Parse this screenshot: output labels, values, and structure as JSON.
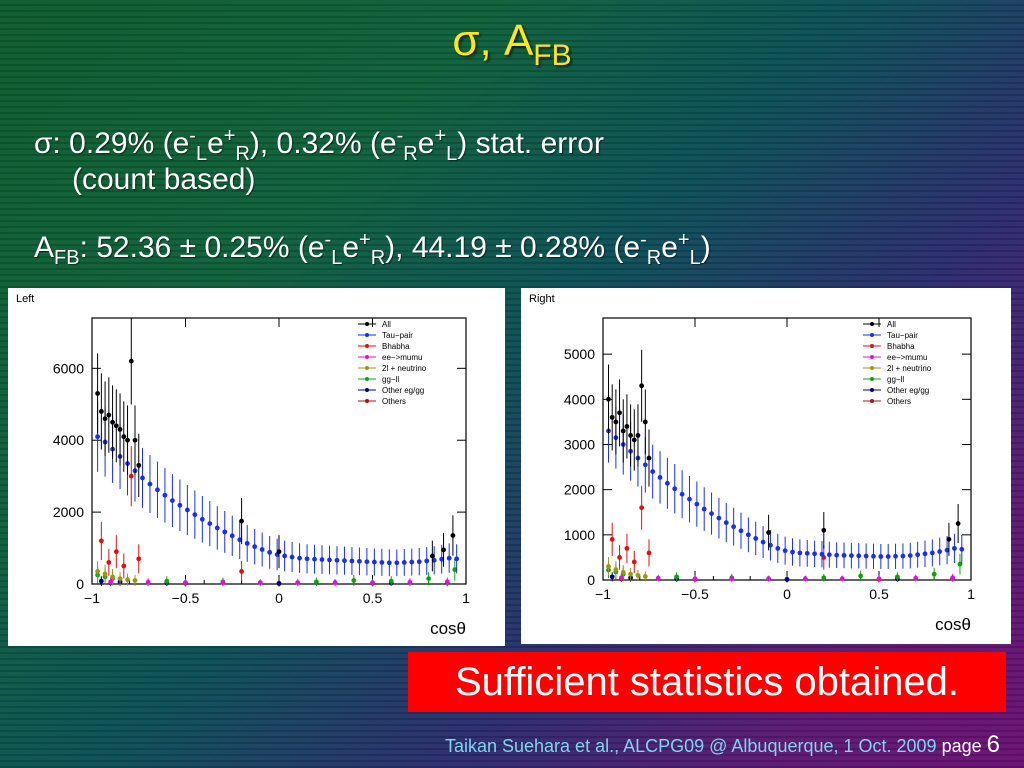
{
  "slide": {
    "title_main": "σ, A",
    "title_sub": "FB",
    "bullet1": {
      "a": "σ: 0.29% (e",
      "a_sup": "-",
      "a_sub": "L",
      "b": "e",
      "b_sup": "+",
      "b_sub": "R",
      "c": "), 0.32% (e",
      "c_sup": "-",
      "c_sub": "R",
      "d": "e",
      "d_sup": "+",
      "d_sub": "L",
      "e": ") stat. error"
    },
    "bullet1_cont": "(count based)",
    "bullet2": {
      "a": "A",
      "a_sub": "FB",
      "b": ": 52.36 ± 0.25% (e",
      "b_sup": "-",
      "b_sub": "L",
      "c": "e",
      "c_sup": "+",
      "c_sub": "R",
      "d": "), 44.19 ± 0.28% (e",
      "d_sup": "-",
      "d_sub": "R",
      "e": "e",
      "e_sup": "+",
      "e_sub": "L",
      "f": ")"
    },
    "banner": "Sufficient statistics obtained.",
    "footer_credit": "Taikan Suehara et al., ALCPG09 @ Albuquerque, 1 Oct. 2009",
    "footer_page_label": "page",
    "footer_page_num": "6"
  },
  "chart_data": [
    {
      "type": "scatter",
      "panel_label": "Left",
      "xlabel": "cosθ",
      "xlim": [
        -1,
        1
      ],
      "ylim": [
        0,
        7400
      ],
      "xticks": [
        -1,
        -0.5,
        0,
        0.5,
        1
      ],
      "xtick_labels": [
        "−1",
        "−0.5",
        "0",
        "0.5",
        "1"
      ],
      "yticks": [
        0,
        2000,
        4000,
        6000
      ],
      "ytick_labels": [
        "0",
        "2000",
        "4000",
        "6000"
      ],
      "legend_position": "top-right",
      "series": [
        {
          "name": "All",
          "color": "#000000",
          "x": [
            -0.97,
            -0.95,
            -0.93,
            -0.91,
            -0.89,
            -0.87,
            -0.85,
            -0.83,
            -0.81,
            -0.79,
            -0.77,
            -0.75,
            -0.2,
            0.0,
            0.82,
            0.88,
            0.93
          ],
          "y": [
            5300,
            4800,
            4600,
            4700,
            4500,
            4400,
            4300,
            4100,
            4000,
            6200,
            4000,
            3300,
            1750,
            900,
            780,
            950,
            1350
          ]
        },
        {
          "name": "Tau−pair",
          "color": "#1a2ef0",
          "x": [
            -0.97,
            -0.93,
            -0.89,
            -0.85,
            -0.81,
            -0.77,
            -0.73,
            -0.69,
            -0.65,
            -0.61,
            -0.57,
            -0.53,
            -0.49,
            -0.45,
            -0.41,
            -0.37,
            -0.33,
            -0.29,
            -0.25,
            -0.21,
            -0.17,
            -0.13,
            -0.09,
            -0.05,
            -0.01,
            0.03,
            0.07,
            0.11,
            0.15,
            0.19,
            0.23,
            0.27,
            0.31,
            0.35,
            0.39,
            0.43,
            0.47,
            0.51,
            0.55,
            0.59,
            0.63,
            0.67,
            0.71,
            0.75,
            0.79,
            0.83,
            0.87,
            0.91,
            0.95
          ],
          "y": [
            4100,
            3950,
            3750,
            3550,
            3350,
            3150,
            2950,
            2780,
            2620,
            2470,
            2320,
            2190,
            2060,
            1930,
            1800,
            1680,
            1560,
            1450,
            1340,
            1230,
            1130,
            1040,
            960,
            880,
            820,
            780,
            750,
            720,
            700,
            690,
            680,
            670,
            660,
            650,
            640,
            630,
            620,
            610,
            600,
            590,
            590,
            600,
            610,
            620,
            640,
            660,
            690,
            720,
            700
          ]
        },
        {
          "name": "Bhabha",
          "color": "#e01010",
          "x": [
            -0.95,
            -0.91,
            -0.87,
            -0.83,
            -0.79,
            -0.75,
            -0.2
          ],
          "y": [
            1200,
            600,
            900,
            500,
            3000,
            700,
            350
          ]
        },
        {
          "name": "ee−>mumu",
          "color": "#e010e0",
          "x": [
            -0.9,
            -0.7,
            -0.5,
            -0.3,
            -0.1,
            0.1,
            0.3,
            0.5,
            0.7,
            0.9
          ],
          "y": [
            60,
            50,
            40,
            40,
            40,
            40,
            40,
            40,
            50,
            60
          ]
        },
        {
          "name": "2l + neutrino",
          "color": "#9a9a10",
          "x": [
            -0.97,
            -0.93,
            -0.89,
            -0.85,
            -0.81,
            -0.77
          ],
          "y": [
            350,
            280,
            200,
            150,
            120,
            100
          ]
        },
        {
          "name": "gg−ll",
          "color": "#10a010",
          "x": [
            -0.97,
            -0.93,
            -0.89,
            -0.6,
            -0.3,
            0.2,
            0.4,
            0.6,
            0.8,
            0.94
          ],
          "y": [
            250,
            200,
            150,
            80,
            60,
            60,
            100,
            80,
            150,
            400
          ]
        },
        {
          "name": "Other eg/gg",
          "color": "#000080",
          "x": [
            -0.95,
            -0.85,
            -0.6,
            0.0,
            0.6
          ],
          "y": [
            80,
            60,
            30,
            20,
            30
          ]
        },
        {
          "name": "Others",
          "color": "#b01010",
          "x": [
            -0.9,
            -0.5,
            0.0,
            0.5,
            0.9
          ],
          "y": [
            30,
            20,
            10,
            20,
            40
          ]
        }
      ]
    },
    {
      "type": "scatter",
      "panel_label": "Right",
      "xlabel": "cosθ",
      "xlim": [
        -1,
        1
      ],
      "ylim": [
        0,
        5800
      ],
      "xticks": [
        -1,
        -0.5,
        0,
        0.5,
        1
      ],
      "xtick_labels": [
        "−1",
        "−0.5",
        "0",
        "0.5",
        "1"
      ],
      "yticks": [
        0,
        1000,
        2000,
        3000,
        4000,
        5000
      ],
      "ytick_labels": [
        "0",
        "1000",
        "2000",
        "3000",
        "4000",
        "5000"
      ],
      "legend_position": "top-right",
      "series": [
        {
          "name": "All",
          "color": "#000000",
          "x": [
            -0.97,
            -0.95,
            -0.93,
            -0.91,
            -0.89,
            -0.87,
            -0.85,
            -0.83,
            -0.81,
            -0.79,
            -0.77,
            -0.75,
            -0.1,
            0.2,
            0.88,
            0.93
          ],
          "y": [
            4000,
            3600,
            3500,
            3700,
            3300,
            3400,
            3200,
            3100,
            3200,
            4300,
            3500,
            2700,
            1050,
            1100,
            900,
            1250
          ]
        },
        {
          "name": "Tau−pair",
          "color": "#1a2ef0",
          "x": [
            -0.97,
            -0.93,
            -0.89,
            -0.85,
            -0.81,
            -0.77,
            -0.73,
            -0.69,
            -0.65,
            -0.61,
            -0.57,
            -0.53,
            -0.49,
            -0.45,
            -0.41,
            -0.37,
            -0.33,
            -0.29,
            -0.25,
            -0.21,
            -0.17,
            -0.13,
            -0.09,
            -0.05,
            -0.01,
            0.03,
            0.07,
            0.11,
            0.15,
            0.19,
            0.23,
            0.27,
            0.31,
            0.35,
            0.39,
            0.43,
            0.47,
            0.51,
            0.55,
            0.59,
            0.63,
            0.67,
            0.71,
            0.75,
            0.79,
            0.83,
            0.87,
            0.91,
            0.95
          ],
          "y": [
            3300,
            3150,
            3000,
            2850,
            2700,
            2550,
            2400,
            2270,
            2140,
            2020,
            1900,
            1790,
            1680,
            1570,
            1470,
            1370,
            1270,
            1180,
            1090,
            1000,
            920,
            840,
            770,
            700,
            650,
            620,
            600,
            590,
            580,
            570,
            560,
            550,
            545,
            540,
            535,
            530,
            525,
            520,
            520,
            525,
            530,
            540,
            560,
            580,
            600,
            630,
            660,
            700,
            680
          ]
        },
        {
          "name": "Bhabha",
          "color": "#e01010",
          "x": [
            -0.95,
            -0.91,
            -0.87,
            -0.83,
            -0.79,
            -0.75,
            0.2
          ],
          "y": [
            900,
            500,
            700,
            400,
            1600,
            600,
            500
          ]
        },
        {
          "name": "ee−>mumu",
          "color": "#e010e0",
          "x": [
            -0.9,
            -0.7,
            -0.5,
            -0.3,
            -0.1,
            0.1,
            0.3,
            0.5,
            0.7,
            0.9
          ],
          "y": [
            50,
            40,
            30,
            30,
            30,
            30,
            30,
            30,
            40,
            50
          ]
        },
        {
          "name": "2l + neutrino",
          "color": "#9a9a10",
          "x": [
            -0.97,
            -0.93,
            -0.89,
            -0.85,
            -0.81,
            -0.77
          ],
          "y": [
            300,
            230,
            170,
            130,
            100,
            80
          ]
        },
        {
          "name": "gg−ll",
          "color": "#10a010",
          "x": [
            -0.97,
            -0.93,
            -0.89,
            -0.6,
            -0.3,
            0.2,
            0.4,
            0.6,
            0.8,
            0.94
          ],
          "y": [
            220,
            180,
            130,
            70,
            50,
            50,
            90,
            70,
            130,
            350
          ]
        },
        {
          "name": "Other eg/gg",
          "color": "#000080",
          "x": [
            -0.95,
            -0.85,
            -0.6,
            0.0,
            0.6
          ],
          "y": [
            70,
            50,
            25,
            15,
            25
          ]
        },
        {
          "name": "Others",
          "color": "#b01010",
          "x": [
            -0.9,
            -0.5,
            0.0,
            0.5,
            0.9
          ],
          "y": [
            25,
            15,
            10,
            15,
            35
          ]
        }
      ]
    }
  ]
}
